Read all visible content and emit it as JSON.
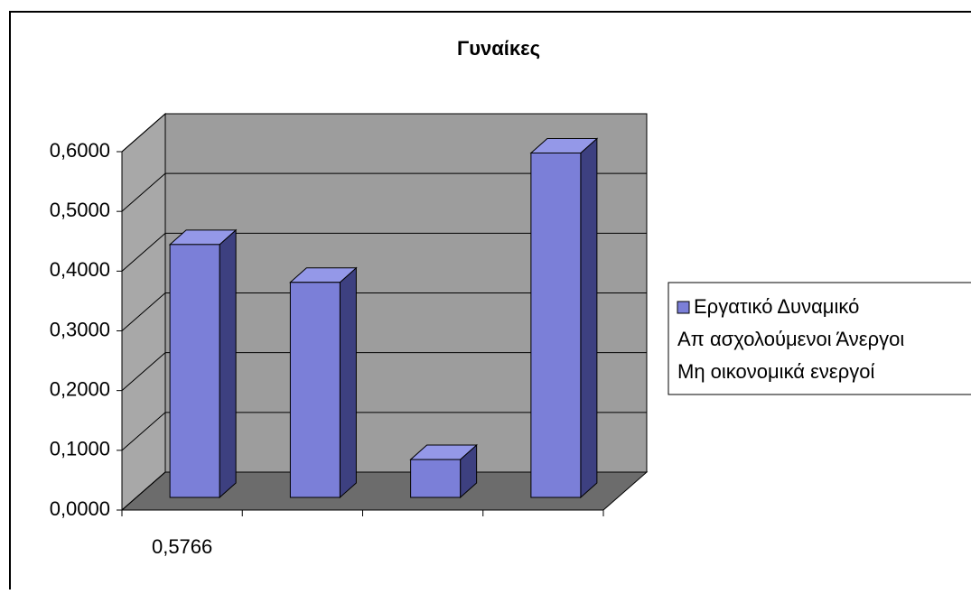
{
  "chart_data": {
    "type": "bar3d",
    "title": "Γυναίκες",
    "categories": [
      "0,5766",
      null,
      null,
      null
    ],
    "series": [
      {
        "name": "Εργατικό Δυναμικό",
        "color": "#7b7fd8",
        "values": [
          0.4234,
          0.36,
          0.0634,
          0.5766
        ]
      }
    ],
    "legend_entries": [
      "Απ ασχολούμενοι Άνεργοι",
      "Μη οικονομικά ενεργοί"
    ],
    "ylim": [
      0,
      0.6
    ],
    "yticks": [
      {
        "value": 0,
        "label": "0,0000"
      },
      {
        "value": 0.1,
        "label": "0,1000"
      },
      {
        "value": 0.2,
        "label": "0,2000"
      },
      {
        "value": 0.3,
        "label": "0,3000"
      },
      {
        "value": 0.4,
        "label": "0,4000"
      },
      {
        "value": 0.5,
        "label": "0,5000"
      },
      {
        "value": 0.6,
        "label": "0,6000"
      }
    ],
    "grid": true,
    "legend": "right"
  }
}
